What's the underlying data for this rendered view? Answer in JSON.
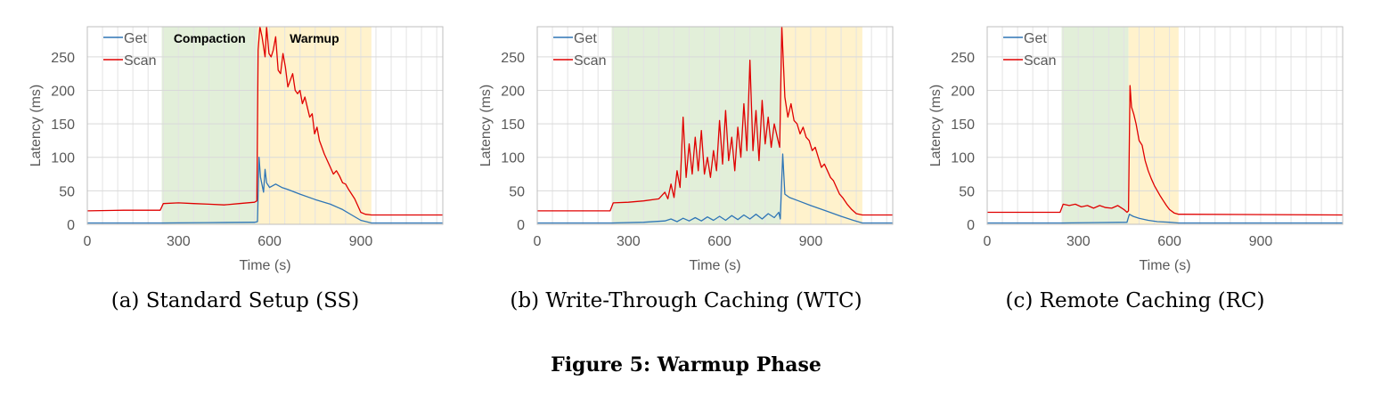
{
  "figure": {
    "title": "Figure 5: Warmup Phase"
  },
  "chart_data": [
    {
      "type": "line",
      "caption": "(a) Standard Setup (SS)",
      "xlabel": "Time (s)",
      "ylabel": "Latency (ms)",
      "xlim": [
        0,
        1170
      ],
      "ylim": [
        0,
        295
      ],
      "xticks": [
        0,
        300,
        600,
        900
      ],
      "yticks": [
        0,
        50,
        100,
        150,
        200,
        250
      ],
      "grid": true,
      "legend_position": "top-left",
      "phases": [
        {
          "label": "Compaction",
          "start": 245,
          "end": 560,
          "color": "#e2efd9"
        },
        {
          "label": "Warmup",
          "start": 560,
          "end": 935,
          "color": "#fff2cc"
        }
      ],
      "series": [
        {
          "name": "Get",
          "color": "#2e75b6",
          "points": [
            [
              0,
              2
            ],
            [
              245,
              2
            ],
            [
              400,
              2.5
            ],
            [
              550,
              3
            ],
            [
              560,
              4
            ],
            [
              565,
              100
            ],
            [
              570,
              70
            ],
            [
              580,
              48
            ],
            [
              585,
              82
            ],
            [
              590,
              62
            ],
            [
              600,
              55
            ],
            [
              620,
              60
            ],
            [
              640,
              55
            ],
            [
              660,
              52
            ],
            [
              700,
              45
            ],
            [
              750,
              37
            ],
            [
              800,
              30
            ],
            [
              840,
              22
            ],
            [
              870,
              14
            ],
            [
              900,
              6
            ],
            [
              935,
              2
            ],
            [
              1170,
              2
            ]
          ]
        },
        {
          "name": "Scan",
          "color": "#e00000",
          "points": [
            [
              0,
              20
            ],
            [
              120,
              21
            ],
            [
              240,
              21
            ],
            [
              250,
              31
            ],
            [
              300,
              32
            ],
            [
              350,
              31
            ],
            [
              400,
              30
            ],
            [
              450,
              29
            ],
            [
              500,
              31
            ],
            [
              550,
              33
            ],
            [
              558,
              35
            ],
            [
              562,
              260
            ],
            [
              568,
              295
            ],
            [
              575,
              280
            ],
            [
              585,
              250
            ],
            [
              590,
              295
            ],
            [
              598,
              255
            ],
            [
              605,
              250
            ],
            [
              612,
              260
            ],
            [
              620,
              280
            ],
            [
              628,
              230
            ],
            [
              636,
              225
            ],
            [
              644,
              255
            ],
            [
              652,
              235
            ],
            [
              660,
              205
            ],
            [
              668,
              215
            ],
            [
              676,
              225
            ],
            [
              684,
              200
            ],
            [
              692,
              195
            ],
            [
              700,
              200
            ],
            [
              708,
              180
            ],
            [
              716,
              190
            ],
            [
              724,
              175
            ],
            [
              732,
              160
            ],
            [
              740,
              165
            ],
            [
              748,
              135
            ],
            [
              756,
              145
            ],
            [
              764,
              125
            ],
            [
              772,
              115
            ],
            [
              780,
              105
            ],
            [
              790,
              95
            ],
            [
              800,
              85
            ],
            [
              810,
              75
            ],
            [
              820,
              80
            ],
            [
              830,
              72
            ],
            [
              840,
              62
            ],
            [
              850,
              60
            ],
            [
              860,
              52
            ],
            [
              870,
              45
            ],
            [
              880,
              38
            ],
            [
              890,
              28
            ],
            [
              900,
              18
            ],
            [
              915,
              15
            ],
            [
              935,
              14
            ],
            [
              1170,
              14
            ]
          ]
        }
      ]
    },
    {
      "type": "line",
      "caption": "(b) Write-Through Caching (WTC)",
      "xlabel": "Time (s)",
      "ylabel": "Latency (ms)",
      "xlim": [
        0,
        1170
      ],
      "ylim": [
        0,
        295
      ],
      "xticks": [
        0,
        300,
        600,
        900
      ],
      "yticks": [
        0,
        50,
        100,
        150,
        200,
        250
      ],
      "grid": true,
      "legend_position": "top-left",
      "phases": [
        {
          "label": "",
          "start": 245,
          "end": 800,
          "color": "#e2efd9"
        },
        {
          "label": "",
          "start": 800,
          "end": 1070,
          "color": "#fff2cc"
        }
      ],
      "series": [
        {
          "name": "Get",
          "color": "#2e75b6",
          "points": [
            [
              0,
              2
            ],
            [
              245,
              2
            ],
            [
              350,
              3
            ],
            [
              420,
              5
            ],
            [
              440,
              8
            ],
            [
              460,
              4
            ],
            [
              480,
              9
            ],
            [
              500,
              5
            ],
            [
              520,
              10
            ],
            [
              540,
              5
            ],
            [
              560,
              11
            ],
            [
              580,
              6
            ],
            [
              600,
              12
            ],
            [
              620,
              6
            ],
            [
              640,
              13
            ],
            [
              660,
              7
            ],
            [
              680,
              14
            ],
            [
              700,
              8
            ],
            [
              720,
              15
            ],
            [
              740,
              8
            ],
            [
              760,
              16
            ],
            [
              780,
              10
            ],
            [
              795,
              18
            ],
            [
              800,
              8
            ],
            [
              808,
              105
            ],
            [
              815,
              45
            ],
            [
              830,
              40
            ],
            [
              860,
              35
            ],
            [
              900,
              28
            ],
            [
              950,
              20
            ],
            [
              1000,
              12
            ],
            [
              1040,
              6
            ],
            [
              1070,
              2
            ],
            [
              1170,
              2
            ]
          ]
        },
        {
          "name": "Scan",
          "color": "#e00000",
          "points": [
            [
              0,
              20
            ],
            [
              240,
              20
            ],
            [
              250,
              32
            ],
            [
              300,
              33
            ],
            [
              350,
              35
            ],
            [
              400,
              38
            ],
            [
              420,
              48
            ],
            [
              430,
              38
            ],
            [
              440,
              60
            ],
            [
              450,
              40
            ],
            [
              460,
              80
            ],
            [
              470,
              55
            ],
            [
              480,
              160
            ],
            [
              490,
              70
            ],
            [
              500,
              120
            ],
            [
              510,
              75
            ],
            [
              520,
              130
            ],
            [
              530,
              80
            ],
            [
              540,
              140
            ],
            [
              550,
              75
            ],
            [
              560,
              100
            ],
            [
              570,
              70
            ],
            [
              580,
              110
            ],
            [
              590,
              80
            ],
            [
              600,
              155
            ],
            [
              610,
              90
            ],
            [
              620,
              170
            ],
            [
              630,
              95
            ],
            [
              640,
              130
            ],
            [
              650,
              80
            ],
            [
              660,
              145
            ],
            [
              670,
              100
            ],
            [
              680,
              180
            ],
            [
              690,
              110
            ],
            [
              700,
              245
            ],
            [
              710,
              110
            ],
            [
              720,
              170
            ],
            [
              730,
              95
            ],
            [
              740,
              185
            ],
            [
              750,
              120
            ],
            [
              760,
              160
            ],
            [
              770,
              115
            ],
            [
              780,
              150
            ],
            [
              790,
              130
            ],
            [
              798,
              115
            ],
            [
              805,
              295
            ],
            [
              815,
              190
            ],
            [
              825,
              160
            ],
            [
              835,
              180
            ],
            [
              845,
              155
            ],
            [
              855,
              150
            ],
            [
              865,
              135
            ],
            [
              875,
              145
            ],
            [
              885,
              130
            ],
            [
              895,
              125
            ],
            [
              905,
              110
            ],
            [
              915,
              115
            ],
            [
              925,
              100
            ],
            [
              935,
              85
            ],
            [
              945,
              90
            ],
            [
              955,
              80
            ],
            [
              965,
              70
            ],
            [
              975,
              65
            ],
            [
              985,
              55
            ],
            [
              995,
              45
            ],
            [
              1005,
              40
            ],
            [
              1020,
              30
            ],
            [
              1035,
              22
            ],
            [
              1050,
              16
            ],
            [
              1070,
              14
            ],
            [
              1170,
              14
            ]
          ]
        }
      ]
    },
    {
      "type": "line",
      "caption": "(c) Remote Caching (RC)",
      "xlabel": "Time (s)",
      "ylabel": "Latency (ms)",
      "xlim": [
        0,
        1170
      ],
      "ylim": [
        0,
        295
      ],
      "xticks": [
        0,
        300,
        600,
        900
      ],
      "yticks": [
        0,
        50,
        100,
        150,
        200,
        250
      ],
      "grid": true,
      "legend_position": "top-left",
      "phases": [
        {
          "label": "",
          "start": 245,
          "end": 465,
          "color": "#e2efd9"
        },
        {
          "label": "",
          "start": 465,
          "end": 630,
          "color": "#fff2cc"
        }
      ],
      "series": [
        {
          "name": "Get",
          "color": "#2e75b6",
          "points": [
            [
              0,
              2
            ],
            [
              245,
              2
            ],
            [
              350,
              2.5
            ],
            [
              460,
              3
            ],
            [
              468,
              15
            ],
            [
              480,
              12
            ],
            [
              500,
              9
            ],
            [
              530,
              6
            ],
            [
              560,
              4
            ],
            [
              600,
              3
            ],
            [
              630,
              2
            ],
            [
              1170,
              2
            ]
          ]
        },
        {
          "name": "Scan",
          "color": "#e00000",
          "points": [
            [
              0,
              18
            ],
            [
              240,
              18
            ],
            [
              250,
              30
            ],
            [
              270,
              28
            ],
            [
              290,
              30
            ],
            [
              310,
              26
            ],
            [
              330,
              28
            ],
            [
              350,
              24
            ],
            [
              370,
              28
            ],
            [
              390,
              25
            ],
            [
              410,
              24
            ],
            [
              430,
              28
            ],
            [
              450,
              22
            ],
            [
              460,
              18
            ],
            [
              465,
              20
            ],
            [
              470,
              207
            ],
            [
              475,
              175
            ],
            [
              482,
              165
            ],
            [
              490,
              150
            ],
            [
              500,
              125
            ],
            [
              510,
              118
            ],
            [
              520,
              95
            ],
            [
              530,
              80
            ],
            [
              540,
              68
            ],
            [
              550,
              58
            ],
            [
              560,
              50
            ],
            [
              570,
              42
            ],
            [
              580,
              35
            ],
            [
              590,
              28
            ],
            [
              600,
              22
            ],
            [
              615,
              17
            ],
            [
              630,
              15
            ],
            [
              1170,
              14
            ]
          ]
        }
      ]
    }
  ]
}
